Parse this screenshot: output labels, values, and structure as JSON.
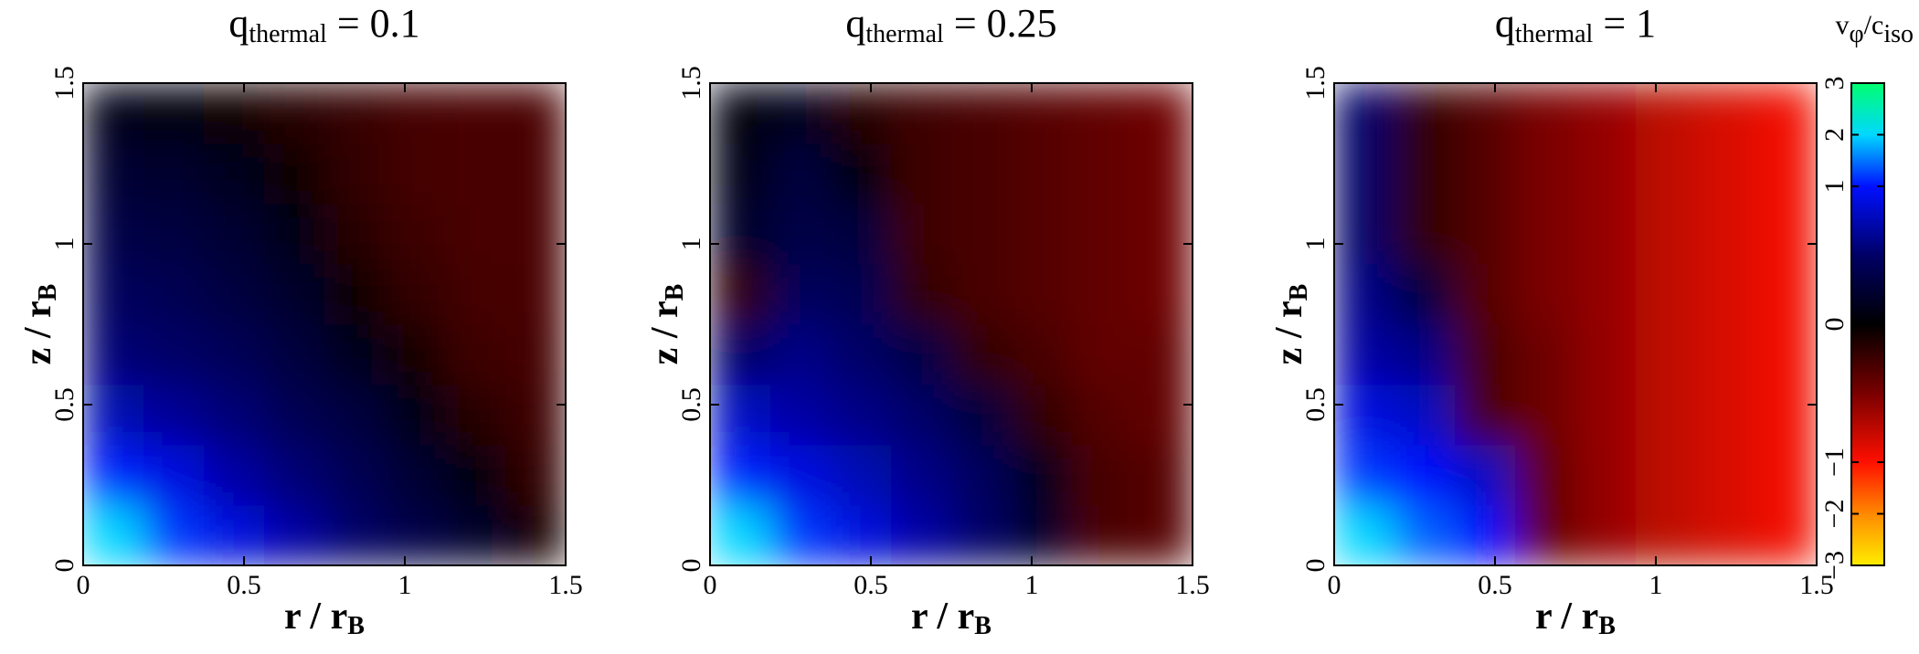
{
  "chart_data": [
    {
      "type": "heatmap",
      "title_parts": [
        "q",
        "thermal",
        " = 0.1"
      ],
      "xlabel_parts": [
        "r / r",
        "B"
      ],
      "ylabel_parts": [
        "z / r",
        "B"
      ],
      "xlim": [
        0,
        1.5
      ],
      "ylim": [
        0,
        1.5
      ],
      "xticks": [
        0,
        0.5,
        1,
        1.5
      ],
      "yticks": [
        0,
        0.5,
        1,
        1.5
      ],
      "z": [
        [
          2.0,
          1.2,
          0.9,
          0.7,
          0.5,
          0.35,
          0.2,
          -0.1
        ],
        [
          1.1,
          0.9,
          0.7,
          0.55,
          0.4,
          0.25,
          0.05,
          -0.2
        ],
        [
          0.75,
          0.65,
          0.55,
          0.4,
          0.3,
          0.1,
          -0.15,
          -0.25
        ],
        [
          0.55,
          0.5,
          0.42,
          0.3,
          0.15,
          -0.1,
          -0.25,
          -0.28
        ],
        [
          0.45,
          0.4,
          0.32,
          0.2,
          -0.05,
          -0.2,
          -0.28,
          -0.3
        ],
        [
          0.35,
          0.32,
          0.25,
          0.12,
          -0.15,
          -0.25,
          -0.3,
          -0.3
        ],
        [
          0.25,
          0.22,
          0.15,
          -0.05,
          -0.2,
          -0.28,
          -0.3,
          -0.3
        ],
        [
          0.1,
          0.05,
          -0.05,
          -0.15,
          -0.22,
          -0.28,
          -0.3,
          -0.3
        ]
      ]
    },
    {
      "type": "heatmap",
      "title_parts": [
        "q",
        "thermal",
        " = 0.25"
      ],
      "xlabel_parts": [
        "r / r",
        "B"
      ],
      "ylabel_parts": [
        "z / r",
        "B"
      ],
      "xlim": [
        0,
        1.5
      ],
      "ylim": [
        0,
        1.5
      ],
      "xticks": [
        0,
        0.5,
        1,
        1.5
      ],
      "yticks": [
        0,
        0.5,
        1,
        1.5
      ],
      "z": [
        [
          2.0,
          1.2,
          0.9,
          0.7,
          0.5,
          0.2,
          -0.3,
          -0.35
        ],
        [
          1.1,
          0.9,
          0.75,
          0.6,
          0.45,
          0.15,
          -0.3,
          -0.35
        ],
        [
          0.8,
          0.7,
          0.6,
          0.5,
          0.3,
          -0.2,
          -0.35,
          -0.4
        ],
        [
          0.5,
          0.6,
          0.5,
          0.35,
          -0.2,
          -0.3,
          -0.4,
          -0.4
        ],
        [
          -0.2,
          0.45,
          0.4,
          -0.2,
          -0.3,
          -0.35,
          -0.4,
          -0.45
        ],
        [
          0.2,
          0.35,
          0.3,
          -0.25,
          -0.3,
          -0.35,
          -0.4,
          -0.45
        ],
        [
          0.1,
          0.3,
          0.05,
          -0.25,
          -0.3,
          -0.35,
          -0.4,
          -0.45
        ],
        [
          0.05,
          0.15,
          -0.15,
          -0.25,
          -0.3,
          -0.35,
          -0.4,
          -0.45
        ]
      ]
    },
    {
      "type": "heatmap",
      "title_parts": [
        "q",
        "thermal",
        " = 1"
      ],
      "xlabel_parts": [
        "r / r",
        "B"
      ],
      "ylabel_parts": [
        "z / r",
        "B"
      ],
      "xlim": [
        0,
        1.5
      ],
      "ylim": [
        0,
        1.5
      ],
      "xticks": [
        0,
        0.5,
        1,
        1.5
      ],
      "yticks": [
        0,
        0.5,
        1,
        1.5
      ],
      "z": [
        [
          2.0,
          1.4,
          1.0,
          -0.4,
          -0.6,
          -0.75,
          -0.85,
          -0.95
        ],
        [
          1.2,
          1.0,
          0.8,
          -0.4,
          -0.6,
          -0.75,
          -0.85,
          -0.95
        ],
        [
          0.9,
          0.8,
          -0.3,
          -0.45,
          -0.6,
          -0.75,
          -0.85,
          -0.95
        ],
        [
          0.7,
          0.6,
          -0.3,
          -0.45,
          -0.6,
          -0.75,
          -0.85,
          -0.95
        ],
        [
          0.6,
          0.3,
          -0.35,
          -0.5,
          -0.6,
          -0.75,
          -0.85,
          -0.95
        ],
        [
          0.5,
          -0.2,
          -0.35,
          -0.5,
          -0.6,
          -0.75,
          -0.85,
          -0.95
        ],
        [
          0.5,
          -0.2,
          -0.35,
          -0.5,
          -0.6,
          -0.75,
          -0.85,
          -0.95
        ],
        [
          0.5,
          -0.2,
          -0.35,
          -0.5,
          -0.6,
          -0.75,
          -0.85,
          -0.95
        ]
      ],
      "colorbar": {
        "label_parts": [
          "v",
          "φ",
          "/c",
          "iso"
        ],
        "scale": "symlog",
        "linthresh": 1,
        "lim": [
          -3,
          3
        ],
        "ticks": [
          3,
          2,
          1,
          0,
          {
            "value": -1,
            "label": "−1"
          },
          {
            "value": -2,
            "label": "−2"
          },
          {
            "value": -3,
            "label": "−3"
          }
        ],
        "colormap": [
          {
            "value": -3,
            "color": "#ffee00"
          },
          {
            "value": -2,
            "color": "#ff8a00"
          },
          {
            "value": -1,
            "color": "#ff1000"
          },
          {
            "value": -0.5,
            "color": "#7a0000"
          },
          {
            "value": 0,
            "color": "#000000"
          },
          {
            "value": 0.5,
            "color": "#000066"
          },
          {
            "value": 1,
            "color": "#0010ff"
          },
          {
            "value": 2,
            "color": "#00d8ff"
          },
          {
            "value": 3,
            "color": "#00ff70"
          }
        ]
      }
    }
  ]
}
